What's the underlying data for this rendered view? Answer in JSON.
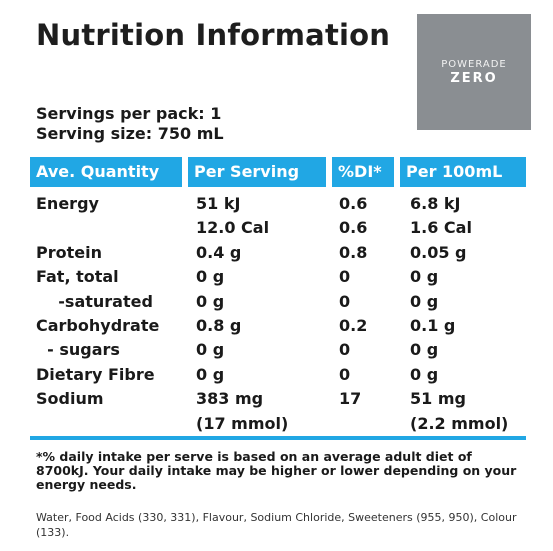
{
  "title": "Nutrition Information",
  "logo": {
    "brand": "POWERADE",
    "variant": "ZERO"
  },
  "servings": {
    "per_pack": "Servings per pack: 1",
    "size": "Serving size: 750 mL"
  },
  "columns": [
    "Ave. Quantity",
    "Per Serving",
    "%DI*",
    "Per 100mL"
  ],
  "rows": [
    {
      "name": "Energy",
      "serving": "51 kJ",
      "di": "0.6",
      "per100": "6.8 kJ"
    },
    {
      "name": "",
      "serving": "12.0 Cal",
      "di": "0.6",
      "per100": "1.6 Cal"
    },
    {
      "name": "Protein",
      "serving": "0.4 g",
      "di": "0.8",
      "per100": "0.05 g"
    },
    {
      "name": "Fat, total",
      "serving": "0 g",
      "di": "0",
      "per100": "0 g"
    },
    {
      "name": "    -saturated",
      "serving": "0 g",
      "di": "0",
      "per100": "0 g"
    },
    {
      "name": "Carbohydrate",
      "serving": "0.8 g",
      "di": "0.2",
      "per100": "0.1 g"
    },
    {
      "name": "  - sugars",
      "serving": "0 g",
      "di": "0",
      "per100": "0 g"
    },
    {
      "name": "Dietary Fibre",
      "serving": "0 g",
      "di": "0",
      "per100": "0 g"
    },
    {
      "name": "Sodium",
      "serving": "383 mg",
      "di": "17",
      "per100": "51 mg"
    },
    {
      "name": "",
      "serving": "(17 mmol)",
      "di": "",
      "per100": "(2.2 mmol)"
    }
  ],
  "footnote": "*% daily intake per serve is based on an average adult diet of 8700kJ. Your daily intake may be higher or lower depending on your energy needs.",
  "ingredients": "Water, Food Acids (330, 331), Flavour, Sodium Chloride, Sweeteners (955, 950), Colour (133)."
}
